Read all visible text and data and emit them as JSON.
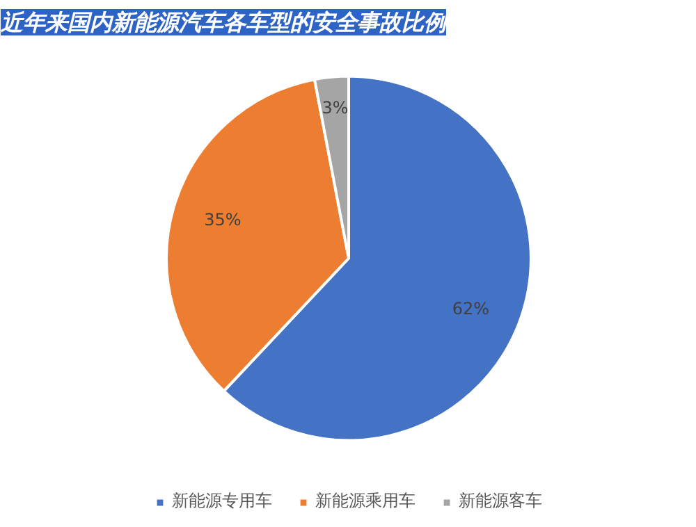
{
  "chart_data": {
    "type": "pie",
    "title": "近年来国内新能源汽车各车型的安全事故比例",
    "categories": [
      "新能源专用车",
      "新能源乘用车",
      "新能源客车"
    ],
    "values": [
      62,
      35,
      3
    ],
    "colors": [
      "#4472c4",
      "#ed7d31",
      "#a5a5a5"
    ],
    "value_labels": [
      "62%",
      "35%",
      "3%"
    ],
    "legend": "bottom"
  }
}
